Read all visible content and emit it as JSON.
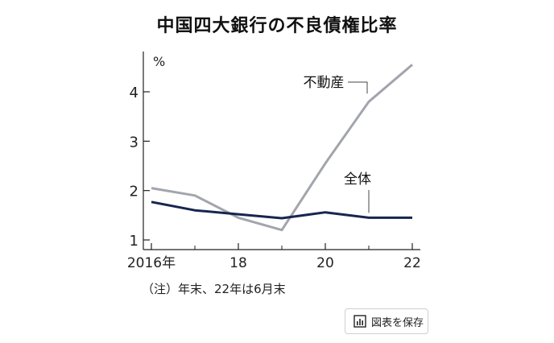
{
  "title": "中国四大銀行の不良債権比率",
  "note": "（注）年末、22年は6月末",
  "save_button_label": "図表を保存",
  "colors": {
    "property": "#a3a5ad",
    "overall": "#172650",
    "axis": "#222222"
  },
  "chart_data": {
    "type": "line",
    "ylabel": "%",
    "ylim": [
      1,
      4.6
    ],
    "xlim": [
      2016,
      2022
    ],
    "yticks": [
      1,
      2,
      3,
      4
    ],
    "xticks": [
      2016,
      2018,
      2020,
      2022
    ],
    "xtick_labels": [
      "2016年",
      "18",
      "20",
      "22"
    ],
    "x": [
      2016,
      2017,
      2018,
      2019,
      2020,
      2021,
      2022
    ],
    "series": [
      {
        "name": "不動産",
        "values": [
          2.05,
          1.9,
          1.45,
          1.2,
          2.55,
          3.8,
          4.55
        ]
      },
      {
        "name": "全体",
        "values": [
          1.77,
          1.6,
          1.52,
          1.44,
          1.56,
          1.45,
          1.45
        ]
      }
    ]
  }
}
